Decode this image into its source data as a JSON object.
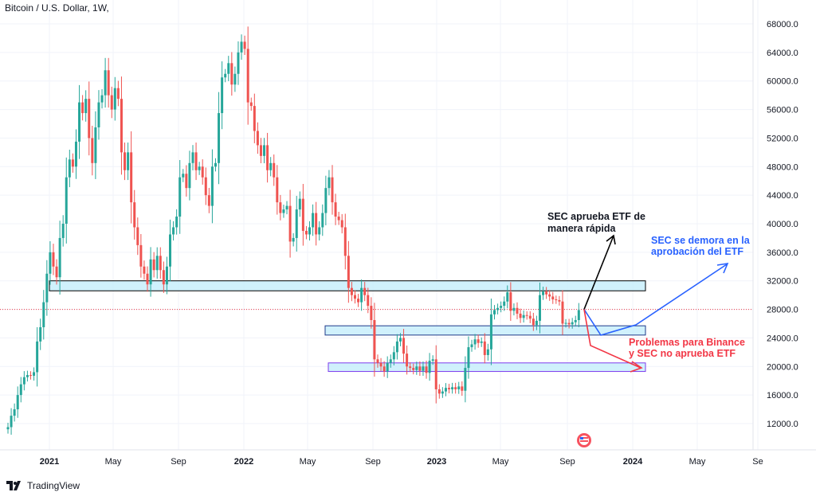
{
  "chart": {
    "title": "Bitcoin / U.S. Dollar, 1W,"
  },
  "brand": {
    "name": "TradingView",
    "logo_icon": "tradingview-logo-icon"
  },
  "colors": {
    "up": "#26a69a",
    "down": "#ef5350",
    "zone_fill": "#c8eefc",
    "black_arrow": "#000000",
    "blue_arrow": "#2962ff",
    "red_arrow": "#f23645"
  },
  "chart_data": {
    "type": "candlestick",
    "title": "Bitcoin / U.S. Dollar, 1W,",
    "ylim": [
      9000,
      72000
    ],
    "y_ticks": [
      "68000.0",
      "64000.0",
      "60000.0",
      "56000.0",
      "52000.0",
      "48000.0",
      "44000.0",
      "40000.0",
      "36000.0",
      "32000.0",
      "28000.0",
      "24000.0",
      "20000.0",
      "16000.0",
      "12000.0"
    ],
    "x_ticks": [
      "2021",
      "May",
      "Sep",
      "2022",
      "May",
      "Sep",
      "2023",
      "May",
      "Sep",
      "2024",
      "May",
      "Se"
    ],
    "grid": true,
    "current_price_line": 28000,
    "weekly_closes": [
      11500,
      13100,
      14000,
      16000,
      17500,
      18500,
      18800,
      18700,
      19200,
      23500,
      25500,
      29000,
      33000,
      36000,
      34000,
      32500,
      38000,
      40000,
      46500,
      49000,
      48000,
      51500,
      57000,
      55500,
      57500,
      52000,
      48500,
      53500,
      57000,
      58000,
      61500,
      58000,
      56000,
      59000,
      57500,
      50000,
      47500,
      50000,
      43000,
      39500,
      37000,
      34000,
      33000,
      31500,
      35000,
      33500,
      35500,
      33500,
      31500,
      34000,
      38500,
      39500,
      41000,
      46500,
      47000,
      45000,
      48500,
      50000,
      47500,
      48000,
      46500,
      44000,
      42500,
      48000,
      48500,
      55500,
      60500,
      61000,
      62500,
      59500,
      61000,
      64000,
      65500,
      64500,
      57000,
      56500,
      53000,
      51000,
      49500,
      51000,
      47500,
      48500,
      46500,
      43000,
      41500,
      42000,
      42500,
      37500,
      38000,
      42000,
      43500,
      39000,
      38500,
      39500,
      41500,
      38500,
      39500,
      41500,
      45000,
      46500,
      43000,
      41000,
      40500,
      39500,
      35500,
      31000,
      30000,
      29500,
      29000,
      31000,
      30000,
      28500,
      26500,
      21000,
      20500,
      20000,
      19300,
      20500,
      21000,
      22000,
      23500,
      24000,
      21800,
      20000,
      19800,
      19500,
      20000,
      19400,
      20000,
      19100,
      20800,
      21000,
      16800,
      16200,
      16500,
      17000,
      16800,
      17100,
      16800,
      17200,
      16600,
      19800,
      22700,
      23100,
      23800,
      23300,
      23500,
      21600,
      22400,
      27300,
      27900,
      28200,
      28500,
      29100,
      30400,
      27800,
      28200,
      27400,
      26800,
      27200,
      27100,
      26700,
      25800,
      26400,
      30000,
      30500,
      30100,
      29800,
      29400,
      29300,
      29100,
      26000,
      26100,
      25900,
      26200,
      26500,
      27900
    ],
    "zones": [
      {
        "y_low": 30600,
        "y_high": 32000,
        "x_from": "2021",
        "x_to": "2024"
      },
      {
        "y_low": 24400,
        "y_high": 25700,
        "x_from": "May 2022",
        "x_to": "2024"
      },
      {
        "y_low": 19300,
        "y_high": 20500,
        "x_from": "May 2022",
        "x_to": "2024"
      }
    ],
    "annotations": [
      {
        "id": "black",
        "text_line1": "SEC aprueba ETF de",
        "text_line2": "manera rápida"
      },
      {
        "id": "blue",
        "text_line1": "SEC se demora en la",
        "text_line2": "aprobación del ETF"
      },
      {
        "id": "red",
        "text_line1": "Problemas para Binance",
        "text_line2": "y SEC no aprueba ETF"
      }
    ]
  }
}
